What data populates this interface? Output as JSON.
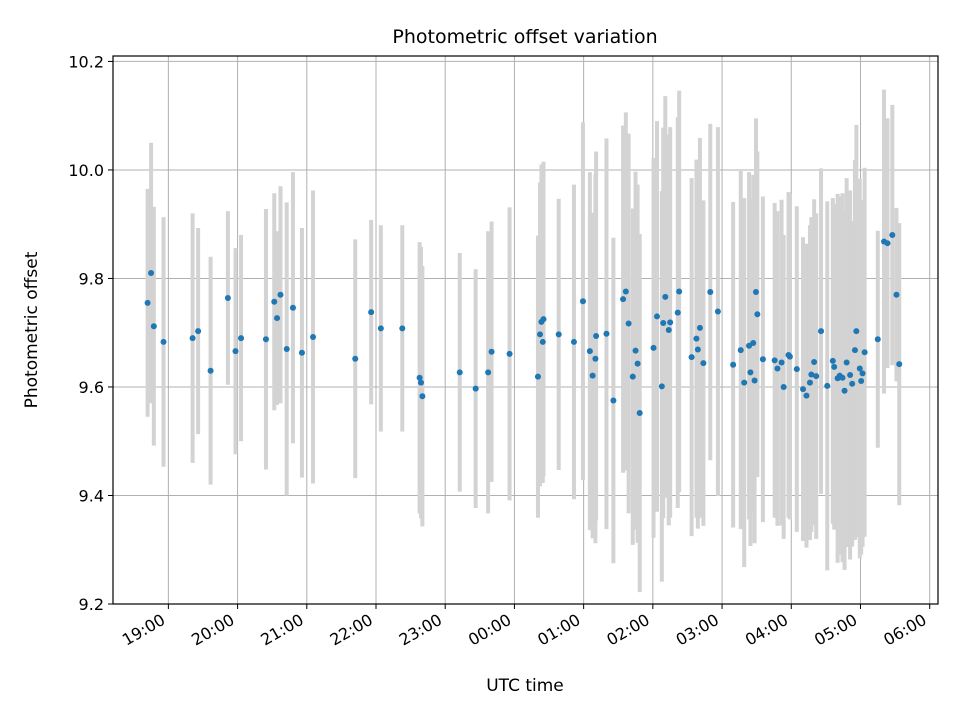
{
  "chart_data": {
    "type": "scatter",
    "title": "Photometric offset variation",
    "xlabel": "UTC time",
    "ylabel": "Photometric offset",
    "x_ticks": [
      "19:00",
      "20:00",
      "21:00",
      "22:00",
      "23:00",
      "00:00",
      "01:00",
      "02:00",
      "03:00",
      "04:00",
      "05:00",
      "06:00"
    ],
    "x_tick_hours": [
      19,
      20,
      21,
      22,
      23,
      24,
      25,
      26,
      27,
      28,
      29,
      30
    ],
    "xlim": [
      18.2,
      30.12
    ],
    "y_ticks": [
      "9.2",
      "9.4",
      "9.6",
      "9.8",
      "10.0",
      "10.2"
    ],
    "ylim": [
      9.2,
      10.21
    ],
    "grid": true,
    "colors": {
      "point": "#1f77b4",
      "errorbar": "#d3d3d3",
      "grid": "#b0b0b0"
    },
    "points": [
      {
        "t": 18.7,
        "y": 9.755,
        "e": 0.21
      },
      {
        "t": 18.75,
        "y": 9.81,
        "e": 0.24
      },
      {
        "t": 18.79,
        "y": 9.712,
        "e": 0.22
      },
      {
        "t": 18.93,
        "y": 9.683,
        "e": 0.23
      },
      {
        "t": 19.35,
        "y": 9.69,
        "e": 0.23
      },
      {
        "t": 19.43,
        "y": 9.703,
        "e": 0.19
      },
      {
        "t": 19.61,
        "y": 9.63,
        "e": 0.21
      },
      {
        "t": 19.86,
        "y": 9.764,
        "e": 0.16
      },
      {
        "t": 19.97,
        "y": 9.666,
        "e": 0.19
      },
      {
        "t": 20.05,
        "y": 9.69,
        "e": 0.19
      },
      {
        "t": 20.41,
        "y": 9.688,
        "e": 0.24
      },
      {
        "t": 20.53,
        "y": 9.757,
        "e": 0.2
      },
      {
        "t": 20.57,
        "y": 9.727,
        "e": 0.16
      },
      {
        "t": 20.62,
        "y": 9.77,
        "e": 0.2
      },
      {
        "t": 20.71,
        "y": 9.67,
        "e": 0.27
      },
      {
        "t": 20.8,
        "y": 9.746,
        "e": 0.25
      },
      {
        "t": 20.93,
        "y": 9.663,
        "e": 0.23
      },
      {
        "t": 21.09,
        "y": 9.692,
        "e": 0.27
      },
      {
        "t": 21.7,
        "y": 9.652,
        "e": 0.22
      },
      {
        "t": 21.93,
        "y": 9.738,
        "e": 0.17
      },
      {
        "t": 22.07,
        "y": 9.708,
        "e": 0.19
      },
      {
        "t": 22.38,
        "y": 9.708,
        "e": 0.19
      },
      {
        "t": 22.63,
        "y": 9.617,
        "e": 0.25
      },
      {
        "t": 22.65,
        "y": 9.608,
        "e": 0.25
      },
      {
        "t": 22.67,
        "y": 9.583,
        "e": 0.24
      },
      {
        "t": 23.21,
        "y": 9.627,
        "e": 0.22
      },
      {
        "t": 23.44,
        "y": 9.597,
        "e": 0.22
      },
      {
        "t": 23.62,
        "y": 9.627,
        "e": 0.26
      },
      {
        "t": 23.67,
        "y": 9.665,
        "e": 0.24
      },
      {
        "t": 23.93,
        "y": 9.661,
        "e": 0.27
      },
      {
        "t": 24.34,
        "y": 9.619,
        "e": 0.26
      },
      {
        "t": 24.37,
        "y": 9.697,
        "e": 0.28
      },
      {
        "t": 24.39,
        "y": 9.72,
        "e": 0.29
      },
      {
        "t": 24.41,
        "y": 9.683,
        "e": 0.26
      },
      {
        "t": 24.42,
        "y": 9.725,
        "e": 0.29
      },
      {
        "t": 24.64,
        "y": 9.697,
        "e": 0.25
      },
      {
        "t": 24.86,
        "y": 9.683,
        "e": 0.29
      },
      {
        "t": 24.99,
        "y": 9.758,
        "e": 0.33
      },
      {
        "t": 25.09,
        "y": 9.666,
        "e": 0.33
      },
      {
        "t": 25.13,
        "y": 9.621,
        "e": 0.3
      },
      {
        "t": 25.17,
        "y": 9.652,
        "e": 0.34
      },
      {
        "t": 25.18,
        "y": 9.694,
        "e": 0.34
      },
      {
        "t": 25.33,
        "y": 9.698,
        "e": 0.36
      },
      {
        "t": 25.43,
        "y": 9.575,
        "e": 0.3
      },
      {
        "t": 25.57,
        "y": 9.762,
        "e": 0.32
      },
      {
        "t": 25.61,
        "y": 9.776,
        "e": 0.33
      },
      {
        "t": 25.65,
        "y": 9.717,
        "e": 0.35
      },
      {
        "t": 25.71,
        "y": 9.619,
        "e": 0.31
      },
      {
        "t": 25.75,
        "y": 9.667,
        "e": 0.33
      },
      {
        "t": 25.78,
        "y": 9.643,
        "e": 0.33
      },
      {
        "t": 25.81,
        "y": 9.552,
        "e": 0.33
      },
      {
        "t": 26.01,
        "y": 9.672,
        "e": 0.35
      },
      {
        "t": 26.06,
        "y": 9.73,
        "e": 0.36
      },
      {
        "t": 26.13,
        "y": 9.601,
        "e": 0.36
      },
      {
        "t": 26.15,
        "y": 9.718,
        "e": 0.36
      },
      {
        "t": 26.18,
        "y": 9.766,
        "e": 0.37
      },
      {
        "t": 26.23,
        "y": 9.705,
        "e": 0.36
      },
      {
        "t": 26.25,
        "y": 9.719,
        "e": 0.36
      },
      {
        "t": 26.36,
        "y": 9.737,
        "e": 0.36
      },
      {
        "t": 26.38,
        "y": 9.776,
        "e": 0.37
      },
      {
        "t": 26.56,
        "y": 9.655,
        "e": 0.33
      },
      {
        "t": 26.63,
        "y": 9.689,
        "e": 0.33
      },
      {
        "t": 26.65,
        "y": 9.669,
        "e": 0.33
      },
      {
        "t": 26.68,
        "y": 9.709,
        "e": 0.35
      },
      {
        "t": 26.73,
        "y": 9.644,
        "e": 0.3
      },
      {
        "t": 26.83,
        "y": 9.775,
        "e": 0.31
      },
      {
        "t": 26.94,
        "y": 9.739,
        "e": 0.34
      },
      {
        "t": 27.16,
        "y": 9.641,
        "e": 0.3
      },
      {
        "t": 27.27,
        "y": 9.668,
        "e": 0.33
      },
      {
        "t": 27.32,
        "y": 9.608,
        "e": 0.34
      },
      {
        "t": 27.39,
        "y": 9.676,
        "e": 0.32
      },
      {
        "t": 27.41,
        "y": 9.627,
        "e": 0.32
      },
      {
        "t": 27.45,
        "y": 9.681,
        "e": 0.31
      },
      {
        "t": 27.47,
        "y": 9.612,
        "e": 0.3
      },
      {
        "t": 27.49,
        "y": 9.775,
        "e": 0.32
      },
      {
        "t": 27.51,
        "y": 9.734,
        "e": 0.3
      },
      {
        "t": 27.59,
        "y": 9.651,
        "e": 0.3
      },
      {
        "t": 27.76,
        "y": 9.649,
        "e": 0.29
      },
      {
        "t": 27.8,
        "y": 9.634,
        "e": 0.29
      },
      {
        "t": 27.86,
        "y": 9.645,
        "e": 0.3
      },
      {
        "t": 27.89,
        "y": 9.6,
        "e": 0.28
      },
      {
        "t": 27.96,
        "y": 9.659,
        "e": 0.3
      },
      {
        "t": 27.98,
        "y": 9.656,
        "e": 0.3
      },
      {
        "t": 28.08,
        "y": 9.633,
        "e": 0.3
      },
      {
        "t": 28.17,
        "y": 9.596,
        "e": 0.28
      },
      {
        "t": 28.22,
        "y": 9.584,
        "e": 0.28
      },
      {
        "t": 28.27,
        "y": 9.608,
        "e": 0.29
      },
      {
        "t": 28.29,
        "y": 9.623,
        "e": 0.29
      },
      {
        "t": 28.33,
        "y": 9.646,
        "e": 0.3
      },
      {
        "t": 28.36,
        "y": 9.62,
        "e": 0.3
      },
      {
        "t": 28.43,
        "y": 9.703,
        "e": 0.3
      },
      {
        "t": 28.52,
        "y": 9.602,
        "e": 0.34
      },
      {
        "t": 28.6,
        "y": 9.648,
        "e": 0.3
      },
      {
        "t": 28.62,
        "y": 9.637,
        "e": 0.3
      },
      {
        "t": 28.67,
        "y": 9.616,
        "e": 0.34
      },
      {
        "t": 28.7,
        "y": 9.621,
        "e": 0.33
      },
      {
        "t": 28.74,
        "y": 9.617,
        "e": 0.34
      },
      {
        "t": 28.77,
        "y": 9.593,
        "e": 0.33
      },
      {
        "t": 28.8,
        "y": 9.645,
        "e": 0.34
      },
      {
        "t": 28.85,
        "y": 9.622,
        "e": 0.34
      },
      {
        "t": 28.88,
        "y": 9.606,
        "e": 0.3
      },
      {
        "t": 28.92,
        "y": 9.668,
        "e": 0.35
      },
      {
        "t": 28.94,
        "y": 9.703,
        "e": 0.38
      },
      {
        "t": 28.99,
        "y": 9.634,
        "e": 0.35
      },
      {
        "t": 29.01,
        "y": 9.611,
        "e": 0.32
      },
      {
        "t": 29.03,
        "y": 9.625,
        "e": 0.32
      },
      {
        "t": 29.06,
        "y": 9.664,
        "e": 0.34
      },
      {
        "t": 29.25,
        "y": 9.688,
        "e": 0.2
      },
      {
        "t": 29.34,
        "y": 9.868,
        "e": 0.28
      },
      {
        "t": 29.39,
        "y": 9.865,
        "e": 0.23
      },
      {
        "t": 29.46,
        "y": 9.88,
        "e": 0.24
      },
      {
        "t": 29.52,
        "y": 9.77,
        "e": 0.16
      },
      {
        "t": 29.56,
        "y": 9.642,
        "e": 0.26
      }
    ]
  }
}
